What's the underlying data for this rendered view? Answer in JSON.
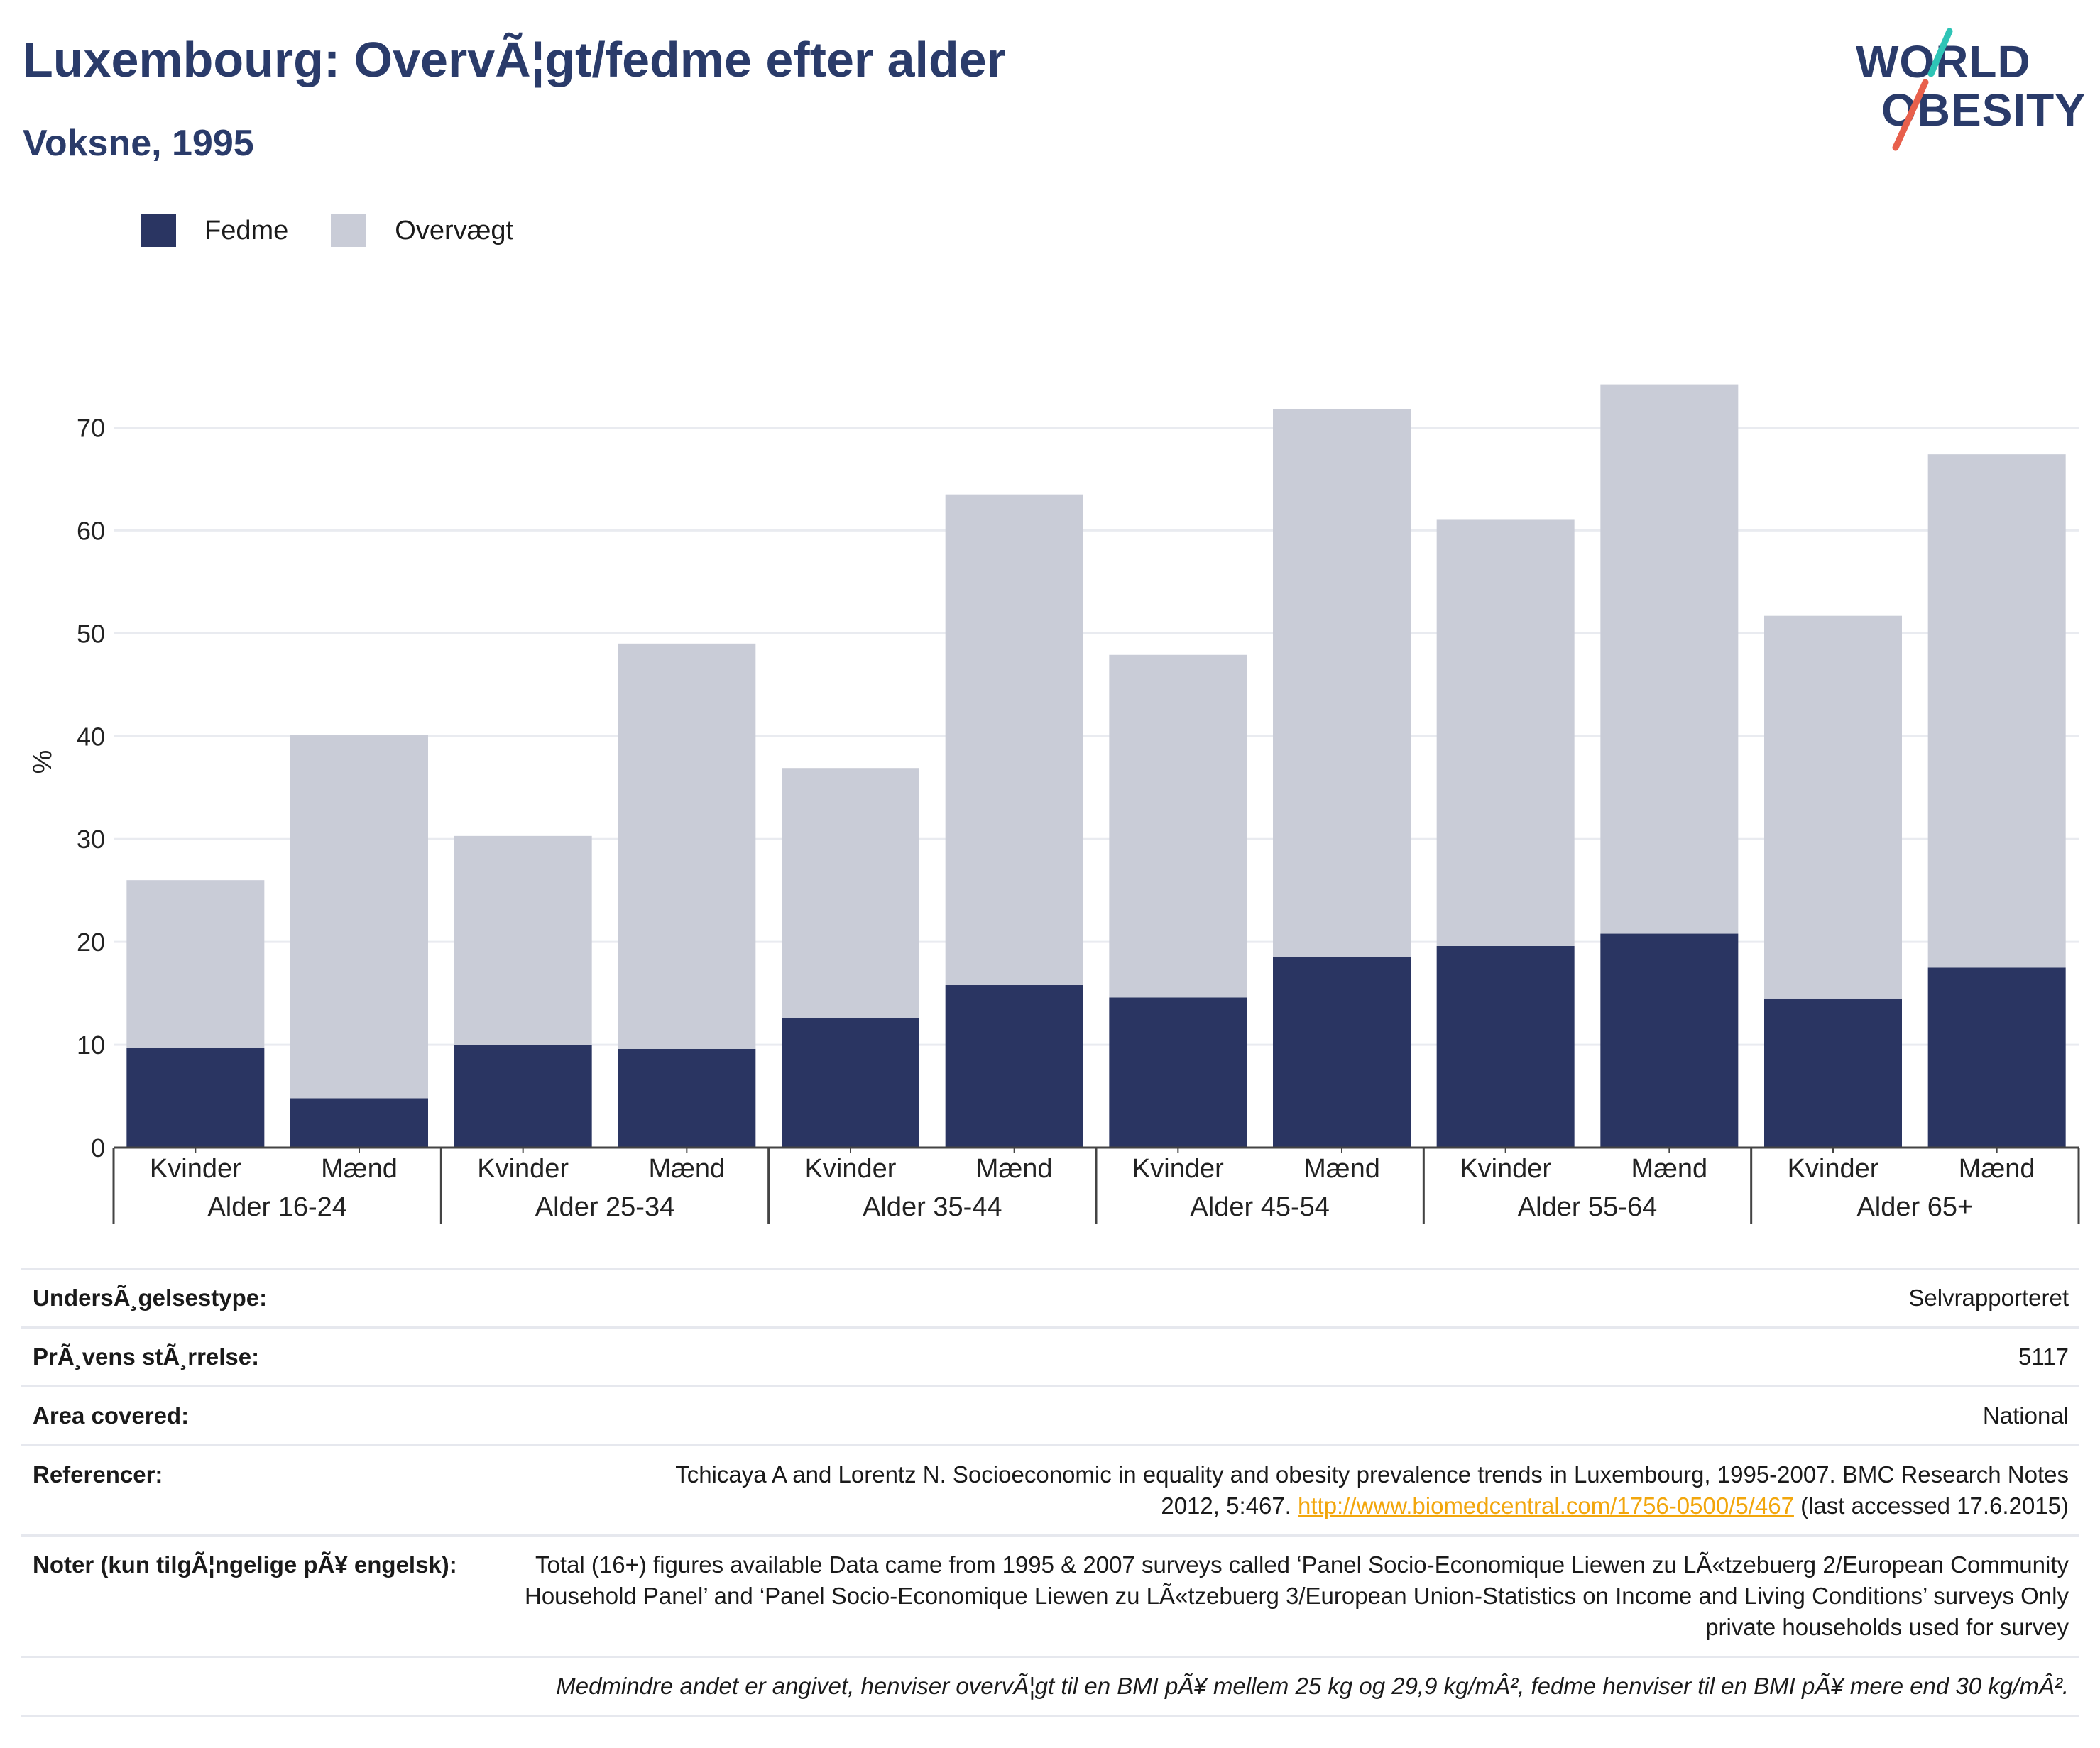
{
  "header": {
    "title": "Luxembourg: OvervÃ¦gt/fedme efter alder",
    "subtitle": "Voksne, 1995"
  },
  "logo": {
    "line1": "WORLD",
    "line2": "OBESITY"
  },
  "colors": {
    "fedme": "#2a3562",
    "overvaegt": "#c9ccd7",
    "accent_title": "#2a3b6a",
    "link": "#f2a60c",
    "logo_teal": "#2ec4b6",
    "logo_coral": "#e8604c"
  },
  "legend": {
    "fedme": "Fedme",
    "overvaegt": "Overvægt"
  },
  "chart_data": {
    "type": "bar",
    "stacked": true,
    "ylabel": "%",
    "ylim": [
      0,
      75
    ],
    "yticks": [
      0,
      10,
      20,
      30,
      40,
      50,
      60,
      70
    ],
    "grid": true,
    "legend_position": "top-left",
    "groups": [
      {
        "label": "Alder 16-24",
        "categories": [
          "Kvinder",
          "Mænd"
        ]
      },
      {
        "label": "Alder 25-34",
        "categories": [
          "Kvinder",
          "Mænd"
        ]
      },
      {
        "label": "Alder 35-44",
        "categories": [
          "Kvinder",
          "Mænd"
        ]
      },
      {
        "label": "Alder 45-54",
        "categories": [
          "Kvinder",
          "Mænd"
        ]
      },
      {
        "label": "Alder 55-64",
        "categories": [
          "Kvinder",
          "Mænd"
        ]
      },
      {
        "label": "Alder 65+",
        "categories": [
          "Kvinder",
          "Mænd"
        ]
      }
    ],
    "series": [
      {
        "name": "Fedme",
        "values": [
          9.7,
          4.8,
          10.0,
          9.6,
          12.6,
          15.8,
          14.6,
          18.5,
          19.6,
          20.8,
          14.5,
          17.5
        ]
      },
      {
        "name": "Overvægt",
        "values": [
          16.3,
          35.3,
          20.3,
          39.4,
          24.3,
          47.7,
          33.3,
          53.3,
          41.5,
          53.4,
          37.2,
          49.9
        ]
      }
    ]
  },
  "info": {
    "survey_type": {
      "label": "UndersÃ¸gelsestype:",
      "value": "Selvrapporteret"
    },
    "sample_size": {
      "label": "PrÃ¸vens stÃ¸rrelse:",
      "value": "5117"
    },
    "area": {
      "label": "Area covered:",
      "value": "National"
    },
    "references": {
      "label": "Referencer:",
      "line1": "Tchicaya A and Lorentz N. Socioeconomic in equality and obesity prevalence trends in Luxembourg, 1995-2007. BMC Research Notes",
      "line2_pre": "2012, 5:467. ",
      "link": "http://www.biomedcentral.com/1756-0500/5/467",
      "line2_post": " (last accessed 17.6.2015)"
    },
    "notes": {
      "label": "Noter (kun tilgÃ¦ngelige pÃ¥ engelsk):",
      "value": "Total (16+) figures available Data came from 1995 & 2007 surveys called ‘Panel Socio-Economique Liewen zu LÃ«tzebuerg 2/European Community Household Panel’ and ‘Panel Socio-Economique Liewen zu LÃ«tzebuerg 3/European Union-Statistics on Income and Living Conditions’ surveys Only private households used for survey"
    },
    "footnote": "Medmindre andet er angivet, henviser overvÃ¦gt til en BMI pÃ¥ mellem 25 kg og 29,9 kg/mÂ², fedme henviser til en BMI pÃ¥ mere end 30 kg/mÂ²."
  }
}
